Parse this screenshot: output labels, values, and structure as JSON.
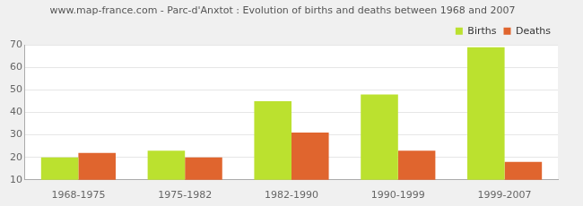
{
  "chart_data": {
    "type": "bar",
    "title": "www.map-france.com - Parc-d'Anxtot : Evolution of births and deaths between 1968 and 2007",
    "categories": [
      "1968-1975",
      "1975-1982",
      "1982-1990",
      "1990-1999",
      "1999-2007"
    ],
    "series": [
      {
        "name": "Births",
        "color": "#bbe12f",
        "values": [
          20,
          23,
          45,
          48,
          69
        ]
      },
      {
        "name": "Deaths",
        "color": "#e0652e",
        "values": [
          22,
          20,
          31,
          23,
          18
        ]
      }
    ],
    "ylim": [
      10,
      70
    ],
    "yticks": [
      10,
      20,
      30,
      40,
      50,
      60,
      70
    ],
    "grid": true,
    "legend": "top right"
  }
}
